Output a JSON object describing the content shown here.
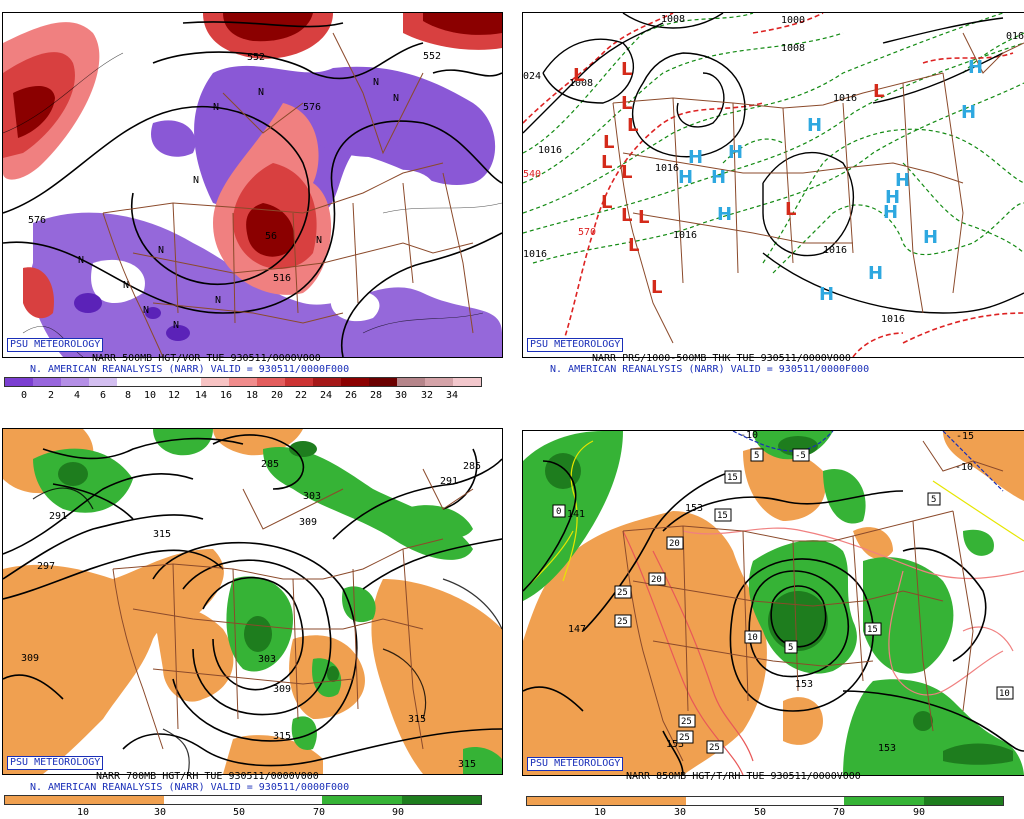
{
  "colors": {
    "vort_purple": "#8a58d6",
    "vort_red_light": "#f08080",
    "vort_red": "#d84040",
    "vort_red_dark": "#8b0000",
    "rh_dry": "#f0a050",
    "rh_moist": "#36b336",
    "rh_moist_dark": "#1e7d1e",
    "logo_blue": "#1a2fb8",
    "high_blue": "#2ea8e0",
    "low_red": "#d42a1a",
    "thickness_green": "#128a12",
    "thickness_red": "#dd2222",
    "borders": "#8b4a2b"
  },
  "panels": [
    {
      "logo": "PSU METEOROLOGY",
      "title_line1": "NARR 500MB HGT/VOR TUE 930511/0000V000",
      "title_line2": "N. AMERICAN REANALYSIS (NARR) VALID = 930511/0000F000",
      "colorbar_ticks": [
        "0",
        "2",
        "4",
        "6",
        "8",
        "10",
        "12",
        "14",
        "16",
        "18",
        "20",
        "22",
        "24",
        "26",
        "28",
        "30",
        "32",
        "34"
      ],
      "contour_labels": [
        "552",
        "552",
        "576",
        "576",
        "56",
        "516"
      ],
      "n_markers": [
        "N",
        "N",
        "N",
        "N",
        "N",
        "N",
        "N",
        "N",
        "N",
        "N",
        "N",
        "N"
      ]
    },
    {
      "logo": "PSU METEOROLOGY",
      "title_line1": "NARR PRS/1000-500MB THK TUE 930511/0000V000",
      "title_line2": "N. AMERICAN REANALYSIS (NARR) VALID = 930511/0000F000",
      "contour_labels": [
        "1008",
        "1000",
        "1008",
        "1008",
        "1016",
        "1016",
        "1016",
        "1016",
        "1016",
        "1016",
        "1016",
        "540",
        "570",
        "024",
        "016"
      ],
      "lows": 14,
      "highs": 14,
      "low_letter": "L",
      "high_letter": "H"
    },
    {
      "logo": "PSU METEOROLOGY",
      "title_line1": "NARR 700MB HGT/RH TUE 930511/0000V000",
      "title_line2": "N. AMERICAN REANALYSIS (NARR) VALID = 930511/0000F000",
      "colorbar_ticks": [
        "10",
        "30",
        "50",
        "70",
        "90"
      ],
      "contour_labels": [
        "285",
        "291",
        "291",
        "285",
        "297",
        "303",
        "309",
        "315",
        "309",
        "303",
        "309",
        "315",
        "315",
        "315"
      ]
    },
    {
      "logo": "PSU METEOROLOGY",
      "title_line1": "NARR 850MB HGT/T/RH TUE 930511/0000V000",
      "colorbar_ticks": [
        "10",
        "30",
        "50",
        "70",
        "90"
      ],
      "contour_labels": [
        "141",
        "147",
        "153",
        "153",
        "153",
        "153",
        "-15",
        "-10",
        "-10"
      ],
      "boxed_labels": [
        "0",
        "5",
        "-5",
        "15",
        "20",
        "20",
        "25",
        "25",
        "10",
        "5",
        "15",
        "25",
        "25",
        "25",
        "5",
        "10",
        "15"
      ]
    }
  ]
}
